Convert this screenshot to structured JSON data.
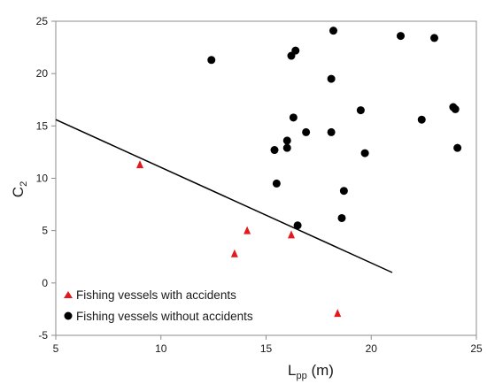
{
  "chart_data": {
    "type": "scatter",
    "title": "",
    "xlabel": {
      "main": "L",
      "sub": "pp",
      "suffix": " (m)"
    },
    "ylabel": {
      "main": "C",
      "sub": "2"
    },
    "xlim": [
      5,
      25
    ],
    "ylim": [
      -5,
      25
    ],
    "xticks": [
      "5",
      "10",
      "15",
      "20",
      "25"
    ],
    "yticks": [
      "-5",
      "0",
      "5",
      "10",
      "15",
      "20",
      "25"
    ],
    "grid": false,
    "legend_position": "bottom-left",
    "series": [
      {
        "name": "Fishing vessels with accidents",
        "marker": "triangle",
        "color": "#e31a1c",
        "points": [
          {
            "x": 9.0,
            "y": 11.3
          },
          {
            "x": 13.5,
            "y": 2.8
          },
          {
            "x": 14.1,
            "y": 5.0
          },
          {
            "x": 16.2,
            "y": 4.6
          },
          {
            "x": 18.4,
            "y": -2.9
          }
        ]
      },
      {
        "name": "Fishing vessels without accidents",
        "marker": "circle",
        "color": "#000000",
        "points": [
          {
            "x": 12.4,
            "y": 21.3
          },
          {
            "x": 15.4,
            "y": 12.7
          },
          {
            "x": 15.5,
            "y": 9.5
          },
          {
            "x": 16.0,
            "y": 13.6
          },
          {
            "x": 16.0,
            "y": 12.9
          },
          {
            "x": 16.2,
            "y": 21.7
          },
          {
            "x": 16.3,
            "y": 15.8
          },
          {
            "x": 16.4,
            "y": 22.2
          },
          {
            "x": 16.5,
            "y": 5.5
          },
          {
            "x": 16.9,
            "y": 14.4
          },
          {
            "x": 18.1,
            "y": 14.4
          },
          {
            "x": 18.1,
            "y": 19.5
          },
          {
            "x": 18.2,
            "y": 24.1
          },
          {
            "x": 18.6,
            "y": 6.2
          },
          {
            "x": 18.7,
            "y": 8.8
          },
          {
            "x": 19.5,
            "y": 16.5
          },
          {
            "x": 19.7,
            "y": 12.4
          },
          {
            "x": 21.4,
            "y": 23.6
          },
          {
            "x": 22.4,
            "y": 15.6
          },
          {
            "x": 23.0,
            "y": 23.4
          },
          {
            "x": 23.9,
            "y": 16.8
          },
          {
            "x": 24.0,
            "y": 16.6
          },
          {
            "x": 24.1,
            "y": 12.9
          }
        ]
      }
    ],
    "lines": [
      {
        "name": "",
        "color": "#000000",
        "points": [
          {
            "x": 5.0,
            "y": 15.6
          },
          {
            "x": 21.0,
            "y": 1.0
          }
        ]
      }
    ]
  }
}
